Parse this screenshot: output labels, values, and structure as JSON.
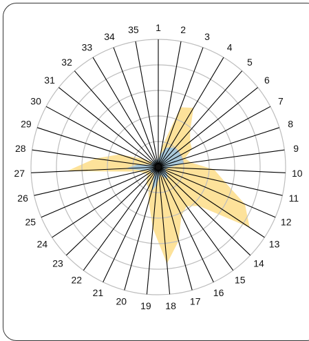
{
  "chart_data": {
    "type": "radar",
    "title": "",
    "axis_labels": [
      "1",
      "2",
      "3",
      "4",
      "5",
      "6",
      "7",
      "8",
      "9",
      "10",
      "11",
      "12",
      "13",
      "14",
      "15",
      "16",
      "17",
      "18",
      "19",
      "20",
      "21",
      "22",
      "23",
      "24",
      "25",
      "26",
      "27",
      "28",
      "29",
      "30",
      "31",
      "32",
      "33",
      "34",
      "35"
    ],
    "radial_range": [
      0,
      5
    ],
    "radial_gridlines": [
      1,
      2,
      3,
      4,
      5
    ],
    "grid": true,
    "legend": "none",
    "series": [
      {
        "color": "#fde29a",
        "values": [
          0.3,
          0.8,
          2.5,
          2.7,
          1.9,
          1.6,
          1.5,
          1.1,
          1.3,
          2.2,
          2.7,
          3.7,
          4.3,
          2.2,
          1.9,
          2.1,
          3.0,
          3.8,
          2.4,
          1.4,
          0.9,
          0.8,
          0.6,
          0.5,
          0.6,
          0.8,
          3.6,
          2.5,
          1.6,
          0.7,
          0.3,
          0.3,
          0.2,
          0.3,
          0.2
        ]
      },
      {
        "color": "#a8c8da",
        "values": [
          0.3,
          0.5,
          0.8,
          0.9,
          1.0,
          1.0,
          1.0,
          1.0,
          1.0,
          0.4,
          0.3,
          0.3,
          0.4,
          0.5,
          0.6,
          0.4,
          0.3,
          0.4,
          0.7,
          1.0,
          0.4,
          0.3,
          0.3,
          0.4,
          0.3,
          0.6,
          1.3,
          0.8,
          0.3,
          0.3,
          0.3,
          0.3,
          0.3,
          0.3,
          0.3
        ]
      }
    ]
  }
}
